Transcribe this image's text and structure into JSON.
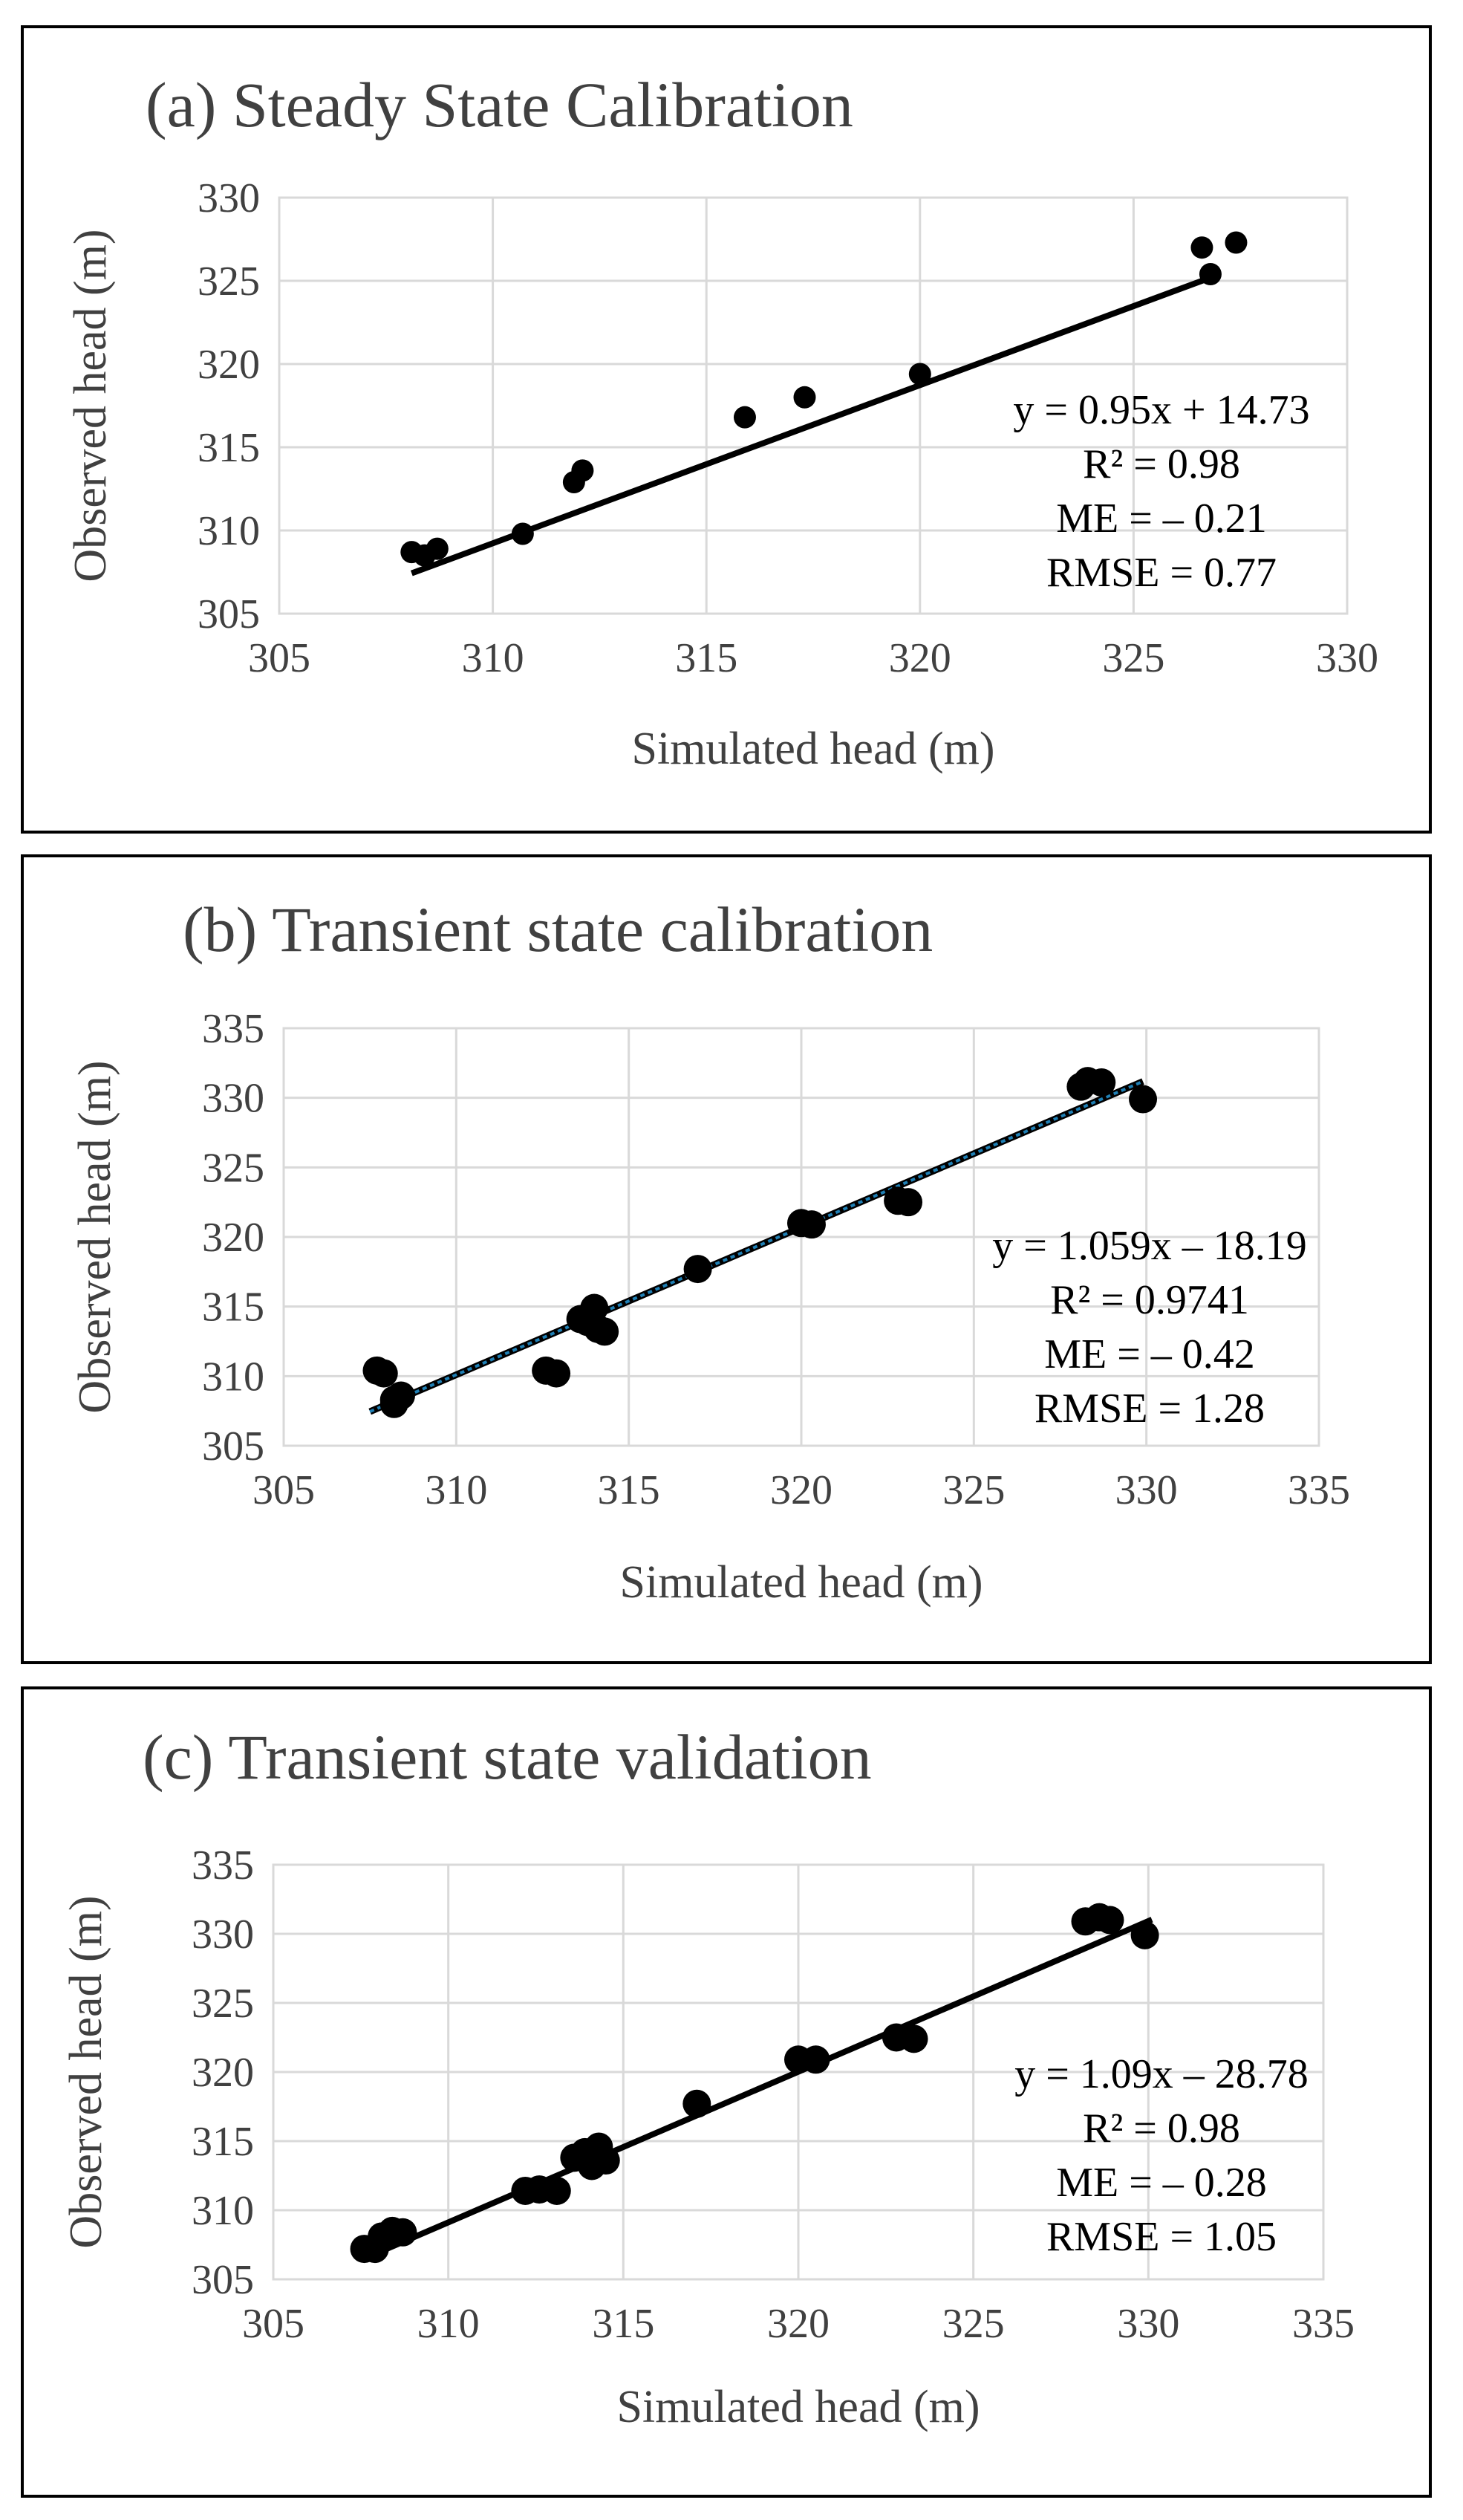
{
  "chart_data": [
    {
      "type": "scatter",
      "title": "(a) Steady State Calibration",
      "xlabel": "Simulated head (m)",
      "ylabel": "Observed head (m)",
      "xlim": [
        305,
        330
      ],
      "ylim": [
        305,
        330
      ],
      "xticks": [
        "305",
        "310",
        "315",
        "320",
        "325",
        "330"
      ],
      "yticks": [
        "305",
        "310",
        "315",
        "320",
        "325",
        "330"
      ],
      "points": [
        [
          308.1,
          308.7
        ],
        [
          308.4,
          308.5
        ],
        [
          308.7,
          308.9
        ],
        [
          310.7,
          309.8
        ],
        [
          311.9,
          312.9
        ],
        [
          312.1,
          313.6
        ],
        [
          315.9,
          316.8
        ],
        [
          317.3,
          318.0
        ],
        [
          320.0,
          319.4
        ],
        [
          326.6,
          327.0
        ],
        [
          326.8,
          325.4
        ],
        [
          327.4,
          327.3
        ]
      ],
      "trendline": {
        "x1": 308.1,
        "x2": 327.0,
        "slope": 0.95,
        "intercept": 14.73,
        "color": "#000000"
      },
      "annotations": [
        "y = 0.95x + 14.73",
        "R² = 0.98",
        "ME = – 0.21",
        "RMSE = 0.77"
      ]
    },
    {
      "type": "scatter",
      "title": "(b) Transient state calibration",
      "xlabel": "Simulated head (m)",
      "ylabel": "Observed head (m)",
      "xlim": [
        305,
        335
      ],
      "ylim": [
        305,
        335
      ],
      "xticks": [
        "305",
        "310",
        "315",
        "320",
        "325",
        "330",
        "335"
      ],
      "yticks": [
        "305",
        "310",
        "315",
        "320",
        "325",
        "330",
        "335"
      ],
      "points": [
        [
          307.7,
          310.4
        ],
        [
          307.9,
          310.2
        ],
        [
          308.2,
          308.3
        ],
        [
          308.4,
          308.6
        ],
        [
          308.2,
          308.0
        ],
        [
          312.6,
          310.4
        ],
        [
          312.9,
          310.2
        ],
        [
          313.6,
          314.1
        ],
        [
          313.8,
          313.9
        ],
        [
          314.0,
          314.9
        ],
        [
          314.1,
          313.4
        ],
        [
          314.3,
          313.2
        ],
        [
          317.0,
          317.7
        ],
        [
          320.0,
          321.0
        ],
        [
          320.3,
          320.9
        ],
        [
          322.8,
          322.6
        ],
        [
          323.1,
          322.5
        ],
        [
          328.1,
          330.8
        ],
        [
          328.3,
          331.2
        ],
        [
          328.7,
          331.1
        ],
        [
          329.9,
          329.9
        ]
      ],
      "trendline": {
        "x1": 307.5,
        "x2": 329.9,
        "slope": 1.059,
        "intercept": -18.19,
        "color": "#1f7fb4"
      },
      "annotations": [
        "y = 1.059x – 18.19",
        "R² = 0.9741",
        "ME = – 0.42",
        "RMSE = 1.28"
      ]
    },
    {
      "type": "scatter",
      "title": "(c) Transient state validation",
      "xlabel": "Simulated head (m)",
      "ylabel": "Observed head (m)",
      "xlim": [
        305,
        335
      ],
      "ylim": [
        305,
        335
      ],
      "xticks": [
        "305",
        "310",
        "315",
        "320",
        "325",
        "330",
        "335"
      ],
      "yticks": [
        "305",
        "310",
        "315",
        "320",
        "325",
        "330",
        "335"
      ],
      "points": [
        [
          307.6,
          307.2
        ],
        [
          307.9,
          307.2
        ],
        [
          308.1,
          308.1
        ],
        [
          308.4,
          308.5
        ],
        [
          308.7,
          308.4
        ],
        [
          312.2,
          311.4
        ],
        [
          312.6,
          311.5
        ],
        [
          313.1,
          311.4
        ],
        [
          313.6,
          313.8
        ],
        [
          313.9,
          314.2
        ],
        [
          314.1,
          313.2
        ],
        [
          314.3,
          314.6
        ],
        [
          314.5,
          313.6
        ],
        [
          317.1,
          317.7
        ],
        [
          320.0,
          320.9
        ],
        [
          320.5,
          320.9
        ],
        [
          322.8,
          322.5
        ],
        [
          323.3,
          322.4
        ],
        [
          328.2,
          330.9
        ],
        [
          328.6,
          331.2
        ],
        [
          328.9,
          331.0
        ],
        [
          329.9,
          329.9
        ]
      ],
      "trendline": {
        "x1": 307.6,
        "x2": 330.1,
        "slope": 1.09,
        "intercept": -28.78,
        "color": "#000000"
      },
      "annotations": [
        "y = 1.09x – 28.78",
        "R² = 0.98",
        "ME = – 0.28",
        "RMSE = 1.05"
      ]
    }
  ]
}
